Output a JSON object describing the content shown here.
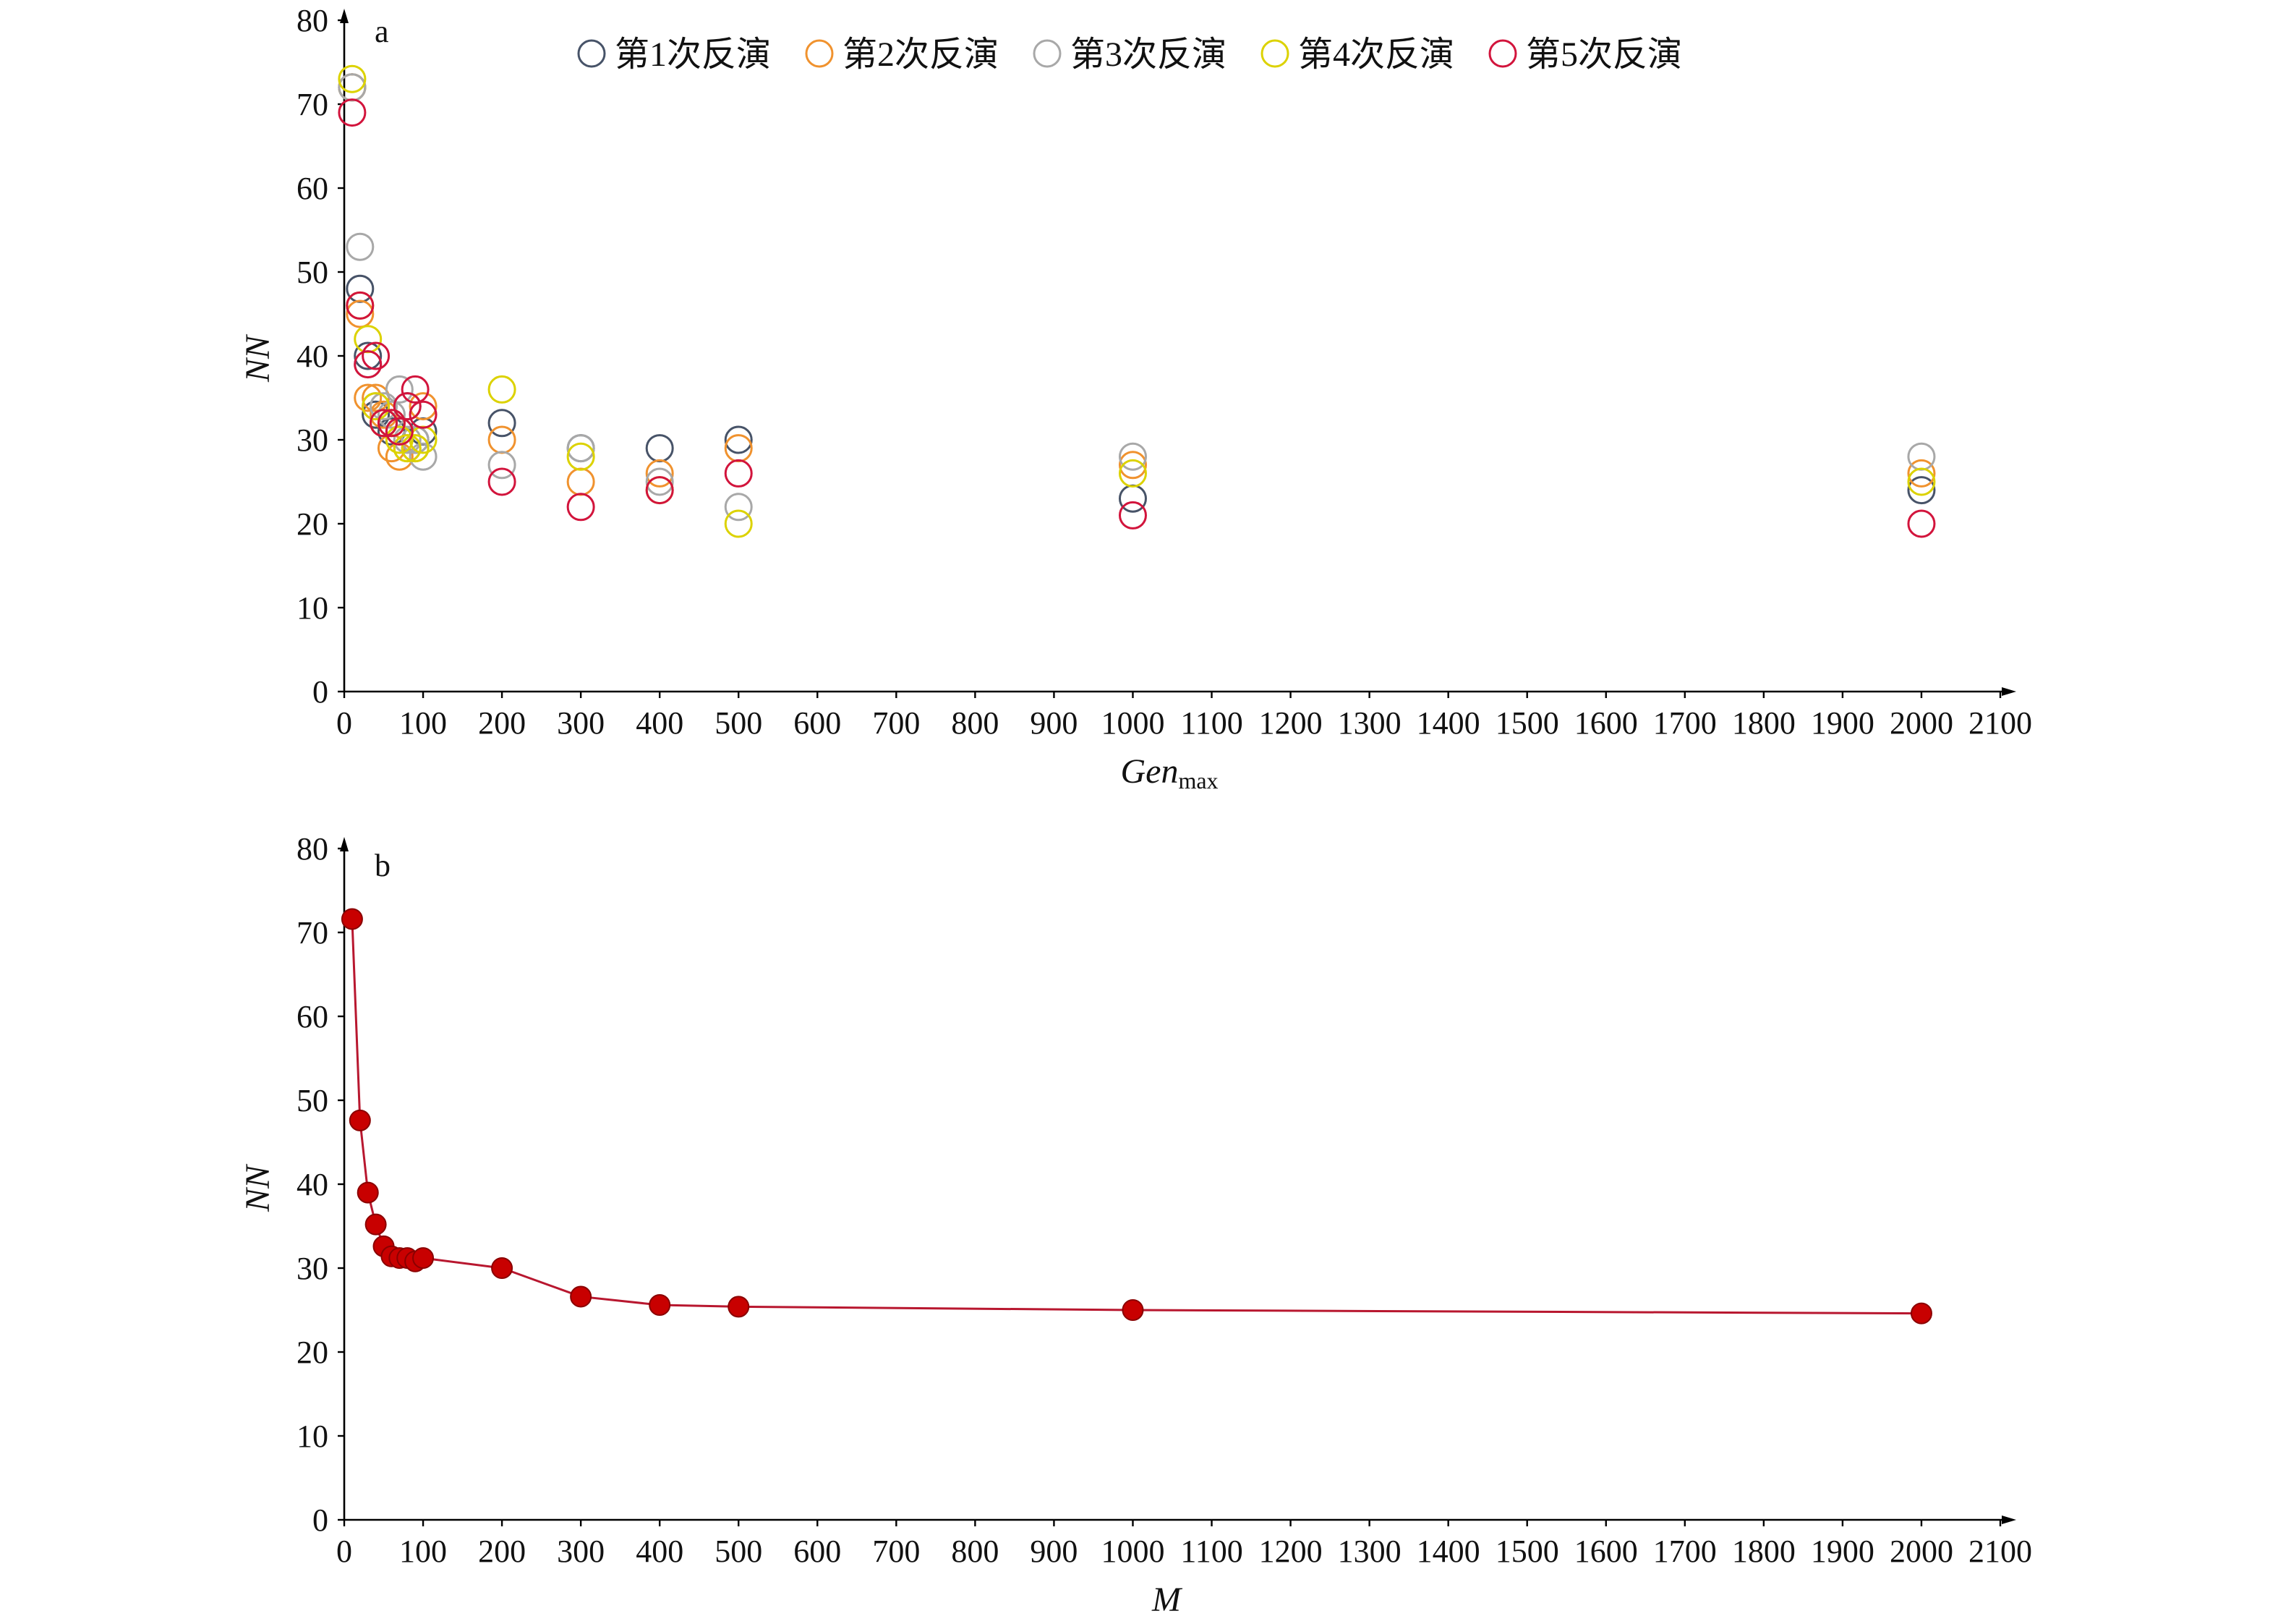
{
  "chart_data": [
    {
      "type": "scatter",
      "panel_label": "a",
      "xlabel": "Gen",
      "xlabel_subscript": "max",
      "ylabel": "NN",
      "xlim": [
        0,
        2100
      ],
      "ylim": [
        0,
        80
      ],
      "xticks": [
        0,
        100,
        200,
        300,
        400,
        500,
        600,
        700,
        800,
        900,
        1000,
        1100,
        1200,
        1300,
        1400,
        1500,
        1600,
        1700,
        1800,
        1900,
        2000,
        2100
      ],
      "yticks": [
        0,
        10,
        20,
        30,
        40,
        50,
        60,
        70,
        80
      ],
      "grid": false,
      "legend_position": "top",
      "marker": "open-circle",
      "x": [
        10,
        20,
        30,
        40,
        50,
        60,
        70,
        80,
        90,
        100,
        200,
        300,
        400,
        500,
        1000,
        2000
      ],
      "series": [
        {
          "name": "第1次反演",
          "color": "#475368",
          "values": [
            72,
            48,
            40,
            33,
            32,
            31,
            31,
            34,
            30,
            31,
            32,
            29,
            29,
            30,
            23,
            24
          ]
        },
        {
          "name": "第2次反演",
          "color": "#f0922e",
          "values": [
            72,
            45,
            35,
            35,
            33,
            29,
            28,
            29,
            29,
            34,
            30,
            25,
            26,
            29,
            27,
            26
          ]
        },
        {
          "name": "第3次反演",
          "color": "#a8a8a8",
          "values": [
            72,
            53,
            39,
            34,
            34,
            33,
            36,
            30,
            30,
            28,
            27,
            29,
            25,
            22,
            28,
            28
          ]
        },
        {
          "name": "第4次反演",
          "color": "#dcd200",
          "values": [
            73,
            46,
            42,
            34,
            32,
            32,
            30,
            29,
            29,
            30,
            36,
            28,
            24,
            20,
            26,
            25
          ]
        },
        {
          "name": "第5次反演",
          "color": "#d2143c",
          "values": [
            69,
            46,
            39,
            40,
            32,
            32,
            31,
            34,
            36,
            33,
            25,
            22,
            24,
            26,
            21,
            20
          ]
        }
      ]
    },
    {
      "type": "line",
      "panel_label": "b",
      "xlabel": "M",
      "ylabel": "NN",
      "xlim": [
        0,
        2100
      ],
      "ylim": [
        0,
        80
      ],
      "xticks": [
        0,
        100,
        200,
        300,
        400,
        500,
        600,
        700,
        800,
        900,
        1000,
        1100,
        1200,
        1300,
        1400,
        1500,
        1600,
        1700,
        1800,
        1900,
        2000,
        2100
      ],
      "yticks": [
        0,
        10,
        20,
        30,
        40,
        50,
        60,
        70,
        80
      ],
      "grid": false,
      "marker": "filled-circle",
      "line_color": "#b8172f",
      "marker_edge_color": "#8a0000",
      "x": [
        10,
        20,
        30,
        40,
        50,
        60,
        70,
        80,
        90,
        100,
        200,
        300,
        400,
        500,
        1000,
        2000
      ],
      "series": [
        {
          "color": "#c80000",
          "values": [
            71.6,
            47.6,
            39.0,
            35.2,
            32.6,
            31.4,
            31.2,
            31.2,
            30.8,
            31.2,
            30.0,
            26.6,
            25.6,
            25.4,
            25.0,
            24.6
          ]
        }
      ]
    }
  ]
}
